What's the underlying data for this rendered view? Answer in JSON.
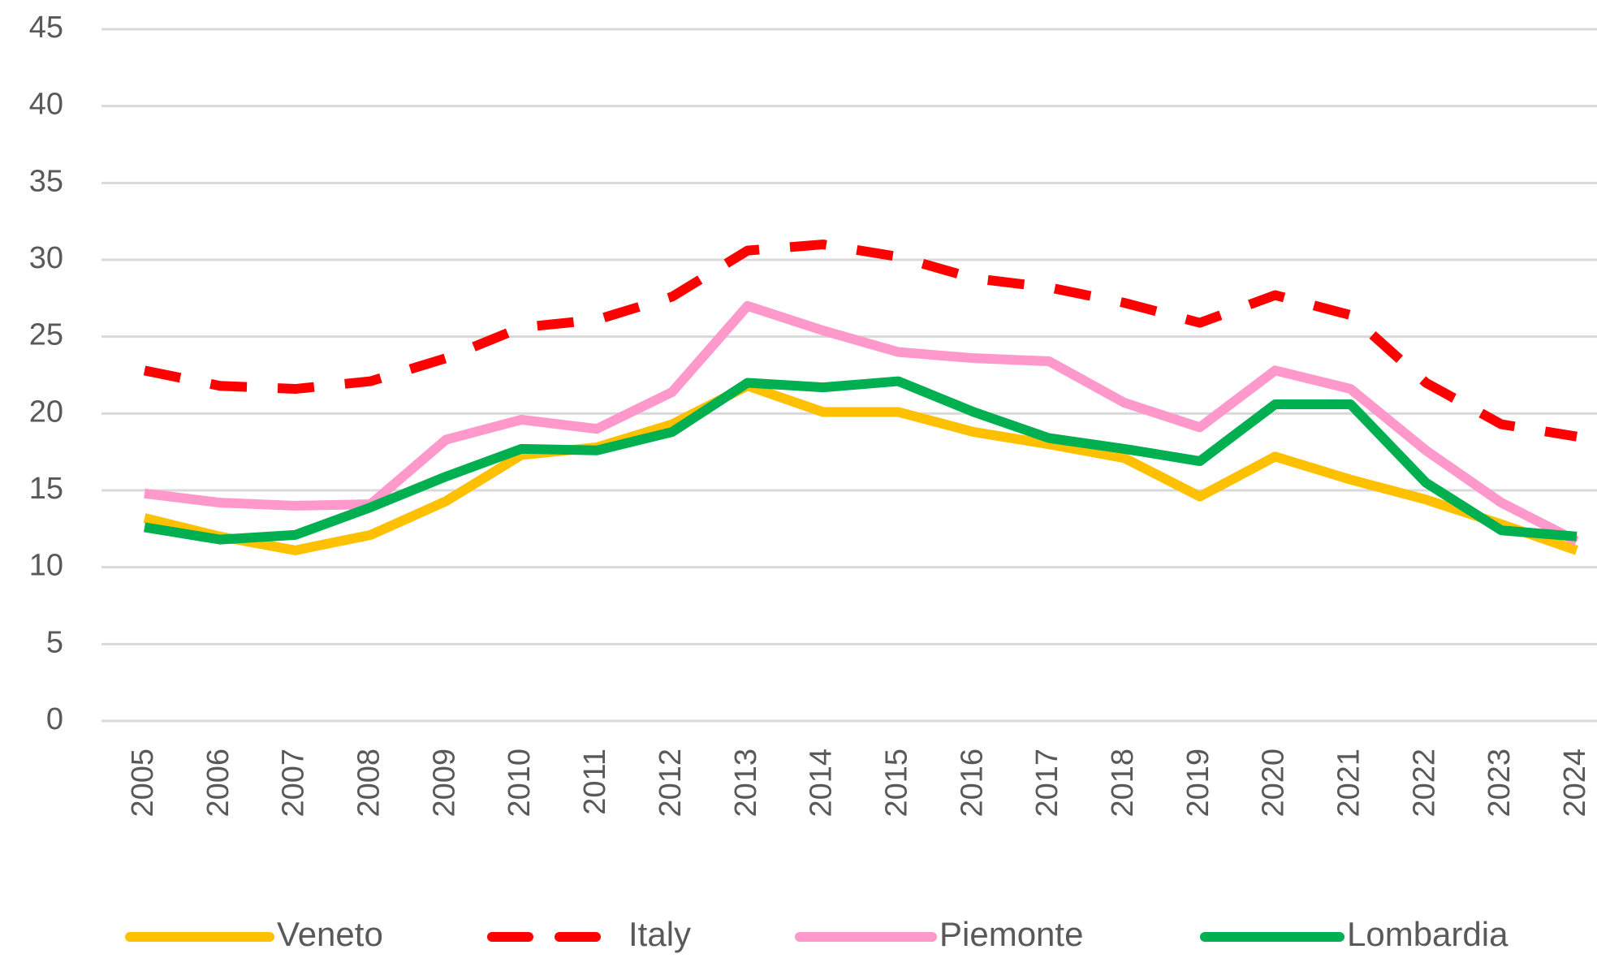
{
  "chart_data": {
    "type": "line",
    "categories": [
      "2005",
      "2006",
      "2007",
      "2008",
      "2009",
      "2010",
      "2011",
      "2012",
      "2013",
      "2014",
      "2015",
      "2016",
      "2017",
      "2018",
      "2019",
      "2020",
      "2021",
      "2022",
      "2023",
      "2024"
    ],
    "series": [
      {
        "name": "Veneto",
        "color": "#FFC000",
        "dashed": false,
        "values": [
          13.2,
          12.0,
          11.1,
          12.1,
          14.3,
          17.3,
          17.8,
          19.3,
          21.8,
          20.1,
          20.1,
          18.8,
          18.0,
          17.1,
          14.6,
          17.2,
          15.7,
          14.4,
          12.8,
          11.1
        ]
      },
      {
        "name": "Italy",
        "color": "#FF0000",
        "dashed": true,
        "values": [
          22.8,
          21.8,
          21.6,
          22.1,
          23.6,
          25.6,
          26.1,
          27.6,
          30.6,
          31.0,
          30.2,
          28.8,
          28.2,
          27.2,
          25.9,
          27.7,
          26.4,
          22.0,
          19.3,
          18.5
        ]
      },
      {
        "name": "Piemonte",
        "color": "#FF99CC",
        "dashed": false,
        "values": [
          14.8,
          14.2,
          14.0,
          14.1,
          18.3,
          19.6,
          19.0,
          21.4,
          27.0,
          25.4,
          24.0,
          23.6,
          23.4,
          20.7,
          19.1,
          22.8,
          21.6,
          17.6,
          14.2,
          11.7
        ]
      },
      {
        "name": "Lombardia",
        "color": "#00B050",
        "dashed": false,
        "values": [
          12.6,
          11.8,
          12.1,
          13.9,
          15.9,
          17.7,
          17.6,
          18.8,
          22.0,
          21.7,
          22.1,
          20.1,
          18.4,
          17.7,
          16.9,
          20.6,
          20.6,
          15.5,
          12.4,
          12.0
        ]
      }
    ],
    "ylim": [
      0,
      45
    ],
    "yticks": [
      0,
      5,
      10,
      15,
      20,
      25,
      30,
      35,
      40,
      45
    ],
    "grid": true,
    "legend": "bottom"
  }
}
